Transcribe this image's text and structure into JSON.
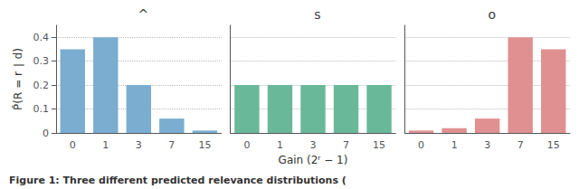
{
  "chart_data": [
    {
      "type": "bar",
      "title": "^",
      "categories": [
        0,
        1,
        3,
        7,
        15
      ],
      "values": [
        0.35,
        0.4,
        0.2,
        0.06,
        0.01
      ],
      "color": "#7aadcf",
      "ylabel": "P̂(R = r ∣ d)",
      "ylim": [
        0,
        0.45
      ],
      "yticks": [
        0,
        0.1,
        0.2,
        0.3,
        0.4
      ],
      "grid": true,
      "annotations": [
        "Figure 1: Three different predicted relevance distributions ("
      ]
    },
    {
      "type": "bar",
      "title": "s",
      "categories": [
        0,
        1,
        3,
        7,
        15
      ],
      "values": [
        0.2,
        0.2,
        0.2,
        0.2,
        0.2
      ],
      "color": "#6ab89a",
      "xlabel": "Gain (2ʳ − 1)",
      "ylim": [
        0,
        0.45
      ],
      "yticks": [
        0,
        0.1,
        0.2,
        0.3,
        0.4
      ],
      "grid": true,
      "tick_labels": "x"
    },
    {
      "type": "bar",
      "title": "o",
      "categories": [
        0,
        1,
        3,
        7,
        15
      ],
      "values": [
        0.01,
        0.02,
        0.06,
        0.4,
        0.35
      ],
      "color": "#e09090",
      "ylim": [
        0,
        0.45
      ],
      "yticks": [
        0,
        0.1,
        0.2,
        0.3,
        0.4
      ],
      "grid": true,
      "tick_labels": "x"
    }
  ]
}
